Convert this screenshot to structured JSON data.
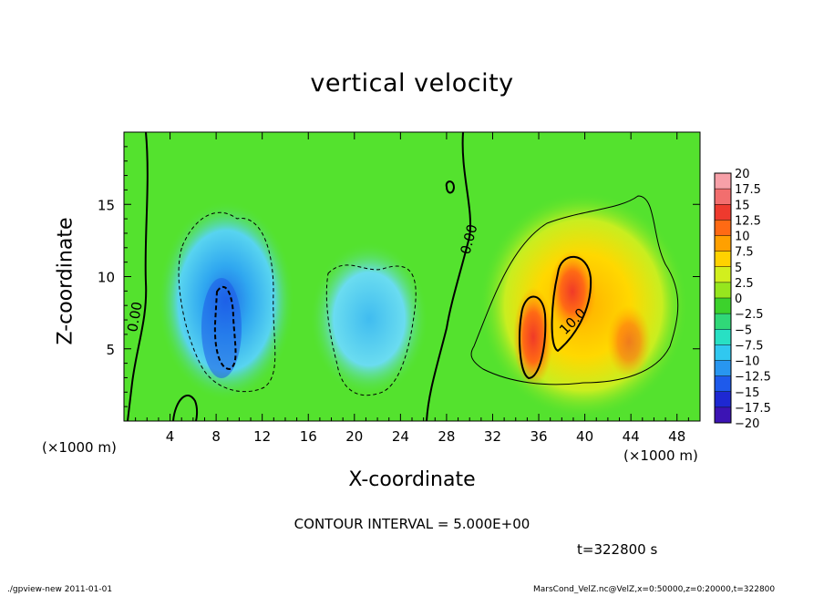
{
  "chart_data": {
    "type": "heatmap",
    "title": "vertical velocity",
    "xlabel": "X-coordinate",
    "ylabel": "Z-coordinate",
    "x_unit": "(×1000 m)",
    "y_unit": "(×1000 m)",
    "xlim": [
      0,
      50
    ],
    "ylim": [
      0,
      20
    ],
    "x_ticks": [
      4,
      8,
      12,
      16,
      20,
      24,
      28,
      32,
      36,
      40,
      44,
      48
    ],
    "y_ticks": [
      5,
      10,
      15
    ],
    "colorbar": {
      "levels": [
        "20",
        "17.5",
        "15",
        "12.5",
        "10",
        "7.5",
        "5",
        "2.5",
        "0",
        "-2.5",
        "-5",
        "-7.5",
        "-10",
        "-12.5",
        "-15",
        "-17.5",
        "-20"
      ],
      "colors": [
        "#f7a0a8",
        "#f26e6e",
        "#ee3a2e",
        "#ff6a14",
        "#ffa000",
        "#ffd200",
        "#d2ef1e",
        "#96e61e",
        "#3cd22c",
        "#30d878",
        "#28e0c4",
        "#30c8f0",
        "#2896f0",
        "#1e5aeb",
        "#1e28d2",
        "#3c14b4",
        "#6a0aa0"
      ]
    },
    "contour_labels": [
      "0.00",
      "0.00",
      "10.0"
    ],
    "contour_interval": "CONTOUR INTERVAL = 5.000E+00",
    "time": "t=322800 s"
  },
  "footer": {
    "left": "./gpview-new   2011-01-01",
    "right": "MarsCond_VelZ.nc@VelZ,x=0:50000,z=0:20000,t=322800"
  },
  "colors": {
    "background_field": "#54e22e",
    "updraft": "#ff9a00",
    "downdraft": "#58d8f4"
  }
}
